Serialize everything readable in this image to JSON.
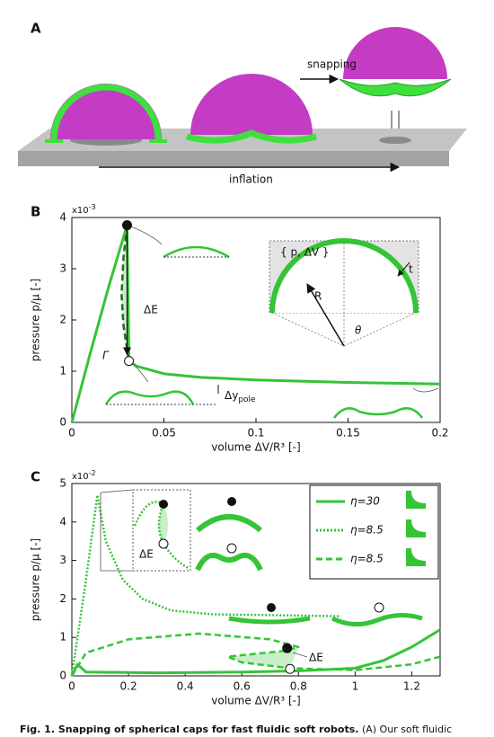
{
  "panel_labels": [
    "A",
    "B",
    "C"
  ],
  "panel_a": {
    "snapping_label": "snapping",
    "inflation_label": "inflation"
  },
  "chart_data": [
    {
      "type": "line",
      "xlabel": "volume ΔV/R³ [-]",
      "ylabel": "pressure p/μ [-]",
      "y_multiplier": {
        "base": "x10",
        "exponent": "-3"
      },
      "xlim": [
        0,
        0.2
      ],
      "ylim": [
        0,
        4
      ],
      "xticks": [
        0,
        0.05,
        0.1,
        0.15,
        0.2
      ],
      "yticks": [
        0,
        1,
        2,
        3,
        4
      ],
      "series": [
        {
          "color": "#35c435",
          "style": "solid",
          "x": [
            0,
            0.01,
            0.02,
            0.03,
            0.031,
            0.035,
            0.05,
            0.07,
            0.1,
            0.15,
            0.2
          ],
          "values": [
            0,
            1.35,
            2.65,
            3.85,
            1.2,
            1.1,
            0.95,
            0.88,
            0.83,
            0.78,
            0.75
          ]
        },
        {
          "color": "#1f6f1f",
          "style": "dashed",
          "x": [
            0.03,
            0.028,
            0.027,
            0.028,
            0.031
          ],
          "values": [
            3.85,
            3.2,
            2.5,
            1.9,
            1.2
          ]
        }
      ],
      "markers": [
        {
          "x": 0.03,
          "y": 3.85,
          "style": "filled"
        },
        {
          "x": 0.031,
          "y": 1.2,
          "style": "open"
        }
      ],
      "annotations": {
        "energy": "ΔE",
        "path": "Γ",
        "pole_main": "Δy",
        "pole_sub": "pole",
        "inset_state": "{ p, ΔV }",
        "radius": "R",
        "thickness": "t",
        "angle": "θ"
      }
    },
    {
      "type": "line",
      "xlabel": "volume ΔV/R³ [-]",
      "ylabel": "pressure p/μ [-]",
      "y_multiplier": {
        "base": "x10",
        "exponent": "-2"
      },
      "xlim": [
        0,
        1.3
      ],
      "ylim": [
        0,
        5
      ],
      "xticks": [
        0,
        0.2,
        0.4,
        0.6,
        0.8,
        1,
        1.2
      ],
      "yticks": [
        0,
        1,
        2,
        3,
        4,
        5
      ],
      "series": [
        {
          "name": "η=30",
          "color": "#35c435",
          "style": "solid",
          "x": [
            0,
            0.02,
            0.05,
            0.3,
            0.6,
            0.8,
            1.0,
            1.1,
            1.2,
            1.3
          ],
          "values": [
            0,
            0.3,
            0.1,
            0.08,
            0.1,
            0.13,
            0.2,
            0.4,
            0.75,
            1.2
          ]
        },
        {
          "name": "η=8.5",
          "color": "#35c435",
          "style": "dotted",
          "x": [
            0,
            0.05,
            0.09,
            0.12,
            0.18,
            0.25,
            0.35,
            0.5,
            0.7,
            0.95
          ],
          "values": [
            0,
            2.5,
            4.7,
            3.5,
            2.5,
            2.0,
            1.7,
            1.6,
            1.58,
            1.55
          ]
        },
        {
          "name": "η=8.5",
          "color": "#35c435",
          "style": "dashed",
          "x": [
            0,
            0.05,
            0.2,
            0.45,
            0.7,
            0.8,
            0.75,
            0.55,
            0.6,
            0.77,
            1.0,
            1.2,
            1.3
          ],
          "values": [
            0,
            0.6,
            0.95,
            1.1,
            0.95,
            0.75,
            0.65,
            0.5,
            0.35,
            0.2,
            0.15,
            0.3,
            0.5
          ]
        }
      ],
      "markers": [
        {
          "x": 0.76,
          "y": 0.72,
          "style": "filled"
        },
        {
          "x": 0.77,
          "y": 0.18,
          "style": "open"
        }
      ],
      "annotations": {
        "energy": "ΔE",
        "inset_energy": "ΔE"
      }
    }
  ],
  "caption": {
    "bold": "Fig. 1. Snapping of spherical caps for fast fluidic soft robots.",
    "text": " (A) Our soft fluidic"
  }
}
